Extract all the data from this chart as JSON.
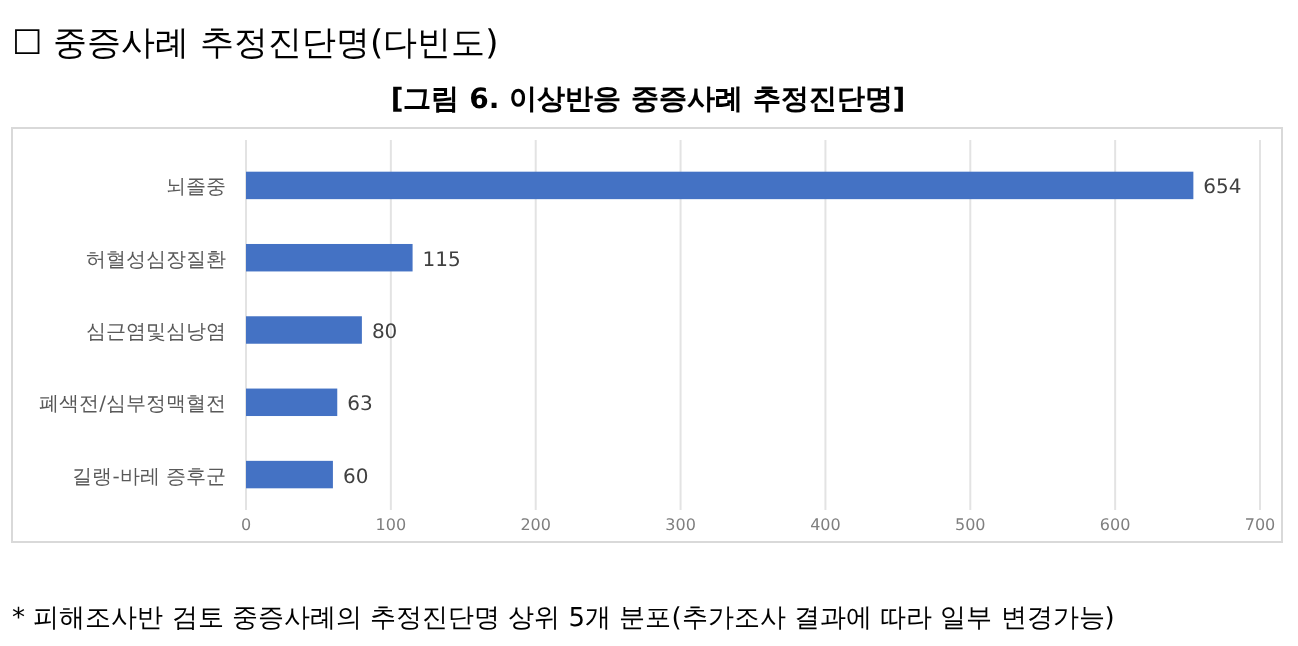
{
  "chart_data": {
    "type": "bar",
    "orientation": "horizontal",
    "subtitle": "☐ 중증사례 추정진단명(다빈도)",
    "title": "[그림 6. 이상반응 중증사례 추정진단명]",
    "categories": [
      "뇌졸중",
      "허혈성심장질환",
      "심근염및심낭염",
      "폐색전/심부정맥혈전",
      "길랭-바레 증후군"
    ],
    "values": [
      654,
      115,
      80,
      63,
      60
    ],
    "color": "#4472c4",
    "data_labels": true,
    "xlim": [
      0,
      700
    ],
    "xticks": [
      0,
      100,
      200,
      300,
      400,
      500,
      600,
      700
    ],
    "grid": "x",
    "annotations": [
      "* 피해조사반 검토 중증사례의 추정진단명 상위 5개 분포(추가조사 결과에 따라 일부 변경가능)"
    ]
  }
}
